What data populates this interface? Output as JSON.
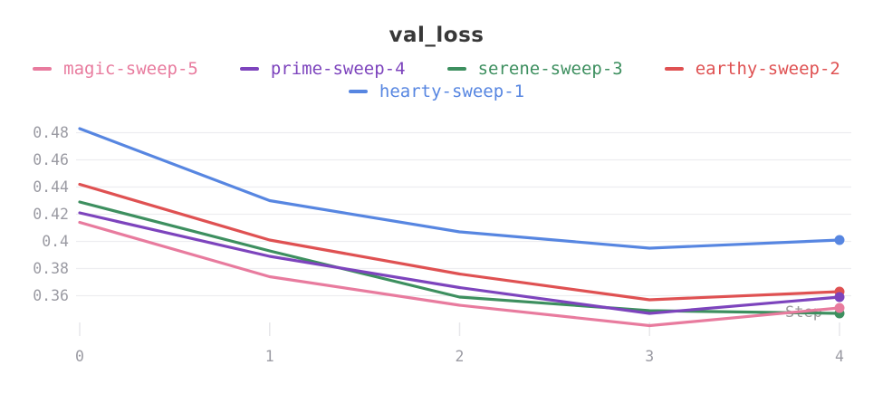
{
  "title": "val_loss",
  "chart_data": {
    "type": "line",
    "title": "val_loss",
    "xlabel": "Step",
    "ylabel": "",
    "x": [
      0,
      1,
      2,
      3,
      4
    ],
    "xlim": [
      0,
      4
    ],
    "ylim": [
      0.33,
      0.488
    ],
    "x_tick_labels": [
      "0",
      "1",
      "2",
      "3",
      "4"
    ],
    "y_ticks": [
      0.48,
      0.46,
      0.44,
      0.42,
      0.4,
      0.38,
      0.36
    ],
    "y_tick_labels": [
      "0.48",
      "0.46",
      "0.44",
      "0.42",
      "0.4",
      "0.38",
      "0.36"
    ],
    "grid": "horizontal",
    "legend_position": "top",
    "end_markers": true,
    "series": [
      {
        "name": "magic-sweep-5",
        "color": "#e87b9e",
        "values": [
          0.414,
          0.374,
          0.353,
          0.338,
          0.351
        ]
      },
      {
        "name": "prime-sweep-4",
        "color": "#7d44bd",
        "values": [
          0.421,
          0.389,
          0.366,
          0.347,
          0.359
        ]
      },
      {
        "name": "serene-sweep-3",
        "color": "#3d8f5f",
        "values": [
          0.429,
          0.393,
          0.359,
          0.349,
          0.347
        ]
      },
      {
        "name": "earthy-sweep-2",
        "color": "#df5152",
        "values": [
          0.442,
          0.401,
          0.376,
          0.357,
          0.363
        ]
      },
      {
        "name": "hearty-sweep-1",
        "color": "#5786e1",
        "values": [
          0.483,
          0.43,
          0.407,
          0.395,
          0.401
        ]
      }
    ]
  },
  "colors": {
    "title": "#383838",
    "tick_label": "#9b9ba3",
    "axis_label": "#9a9a9a",
    "gridline": "#ededf0",
    "tick_mark": "#e7e7ea",
    "background": "#ffffff"
  }
}
